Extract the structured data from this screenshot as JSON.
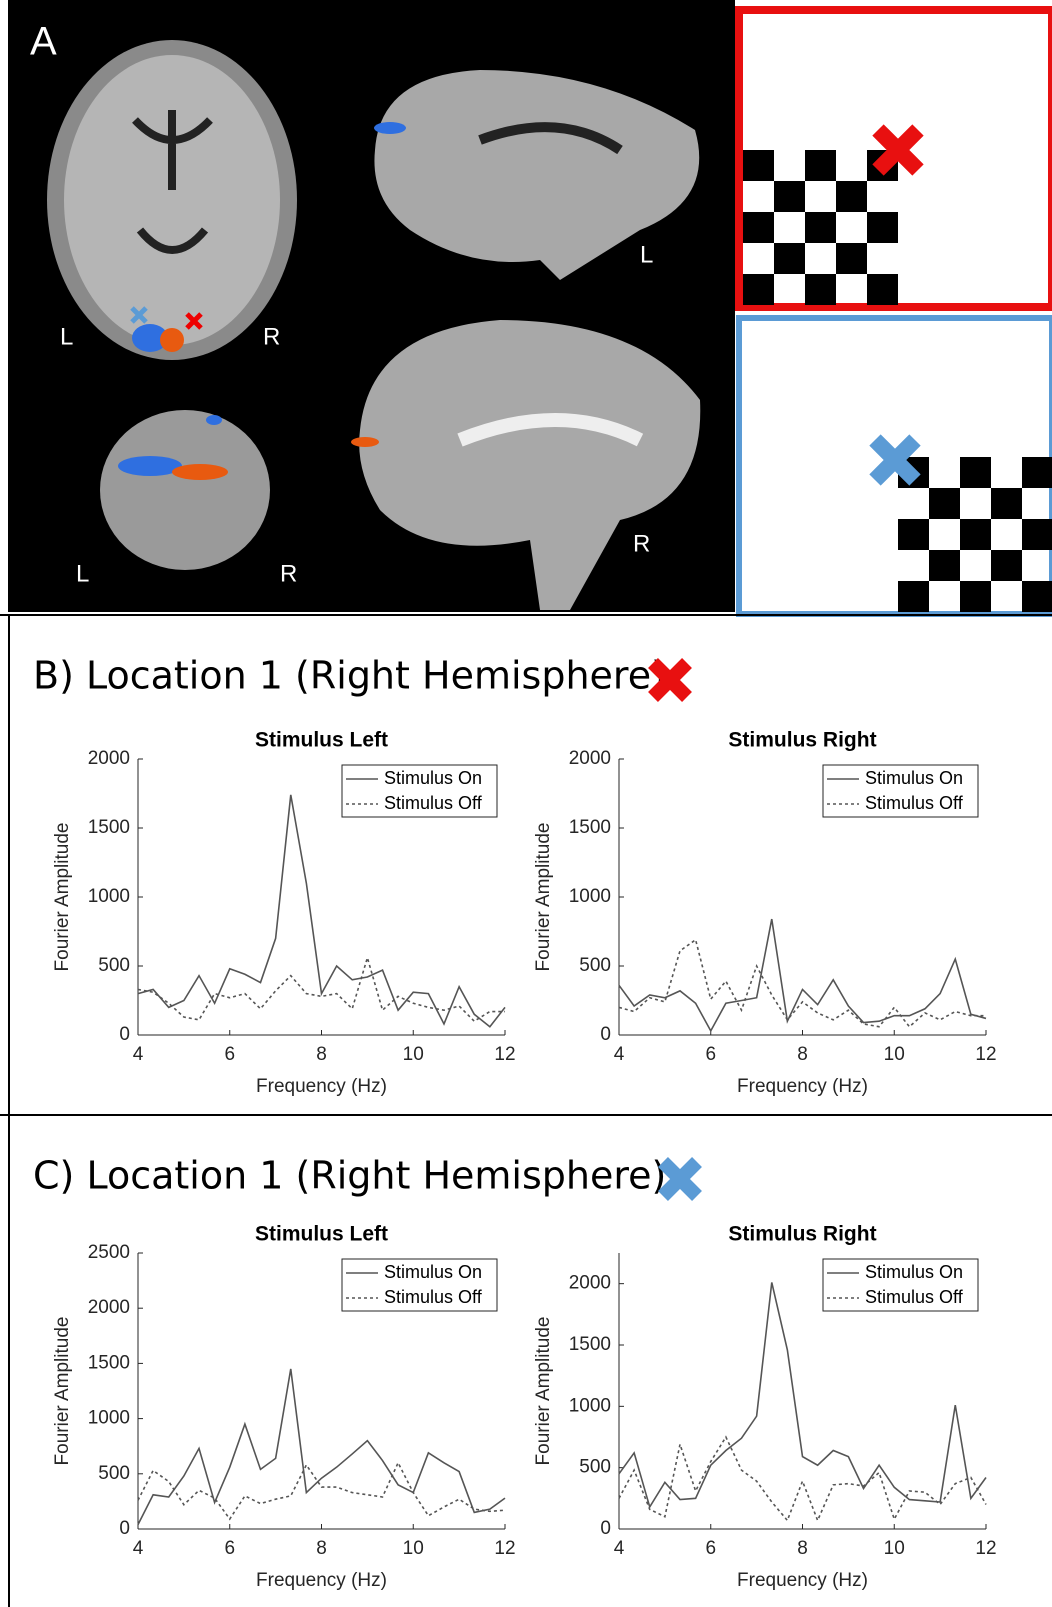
{
  "panel_a": {
    "label": "A",
    "axial": [
      "L",
      "R"
    ],
    "coronal": [
      "L",
      "R"
    ],
    "sagittal_top": "L",
    "sagittal_bottom": "R"
  },
  "sections": [
    "B) Location 1 (Right Hemisphere)",
    "C) Location 1 (Right Hemisphere)"
  ],
  "chart_data": [
    {
      "type": "line",
      "title": "Stimulus Left",
      "xlabel": "Frequency (Hz)",
      "ylabel": "Fourier Amplitude",
      "x": [
        4,
        4.33,
        4.67,
        5,
        5.33,
        5.67,
        6,
        6.33,
        6.67,
        7,
        7.33,
        7.67,
        8,
        8.33,
        8.67,
        9,
        9.33,
        9.67,
        10,
        10.33,
        10.67,
        11,
        11.33,
        11.67,
        12
      ],
      "xlim": [
        4,
        12
      ],
      "xticks": [
        4,
        6,
        8,
        10,
        12
      ],
      "ylim": [
        0,
        2000
      ],
      "yticks": [
        0,
        500,
        1000,
        1500,
        2000
      ],
      "legend": "upper right",
      "series": [
        {
          "name": "Stimulus On",
          "color": "#555555",
          "linestyle": "solid",
          "values": [
            300,
            330,
            200,
            250,
            430,
            230,
            480,
            440,
            380,
            700,
            1740,
            1100,
            300,
            500,
            400,
            420,
            470,
            180,
            310,
            300,
            80,
            350,
            150,
            60,
            200
          ]
        },
        {
          "name": "Stimulus Off",
          "color": "#555555",
          "linestyle": "dotted",
          "values": [
            330,
            310,
            230,
            130,
            110,
            300,
            270,
            300,
            190,
            320,
            430,
            300,
            280,
            300,
            190,
            560,
            180,
            280,
            230,
            200,
            180,
            210,
            100,
            170,
            170
          ]
        }
      ]
    },
    {
      "type": "line",
      "title": "Stimulus Right",
      "xlabel": "Frequency (Hz)",
      "ylabel": "Fourier Amplitude",
      "x": [
        4,
        4.33,
        4.67,
        5,
        5.33,
        5.67,
        6,
        6.33,
        6.67,
        7,
        7.33,
        7.67,
        8,
        8.33,
        8.67,
        9,
        9.33,
        9.67,
        10,
        10.33,
        10.67,
        11,
        11.33,
        11.67,
        12
      ],
      "xlim": [
        4,
        12
      ],
      "xticks": [
        4,
        6,
        8,
        10,
        12
      ],
      "ylim": [
        0,
        2000
      ],
      "yticks": [
        0,
        500,
        1000,
        1500,
        2000
      ],
      "legend": "upper right",
      "series": [
        {
          "name": "Stimulus On",
          "color": "#555555",
          "linestyle": "solid",
          "values": [
            360,
            210,
            290,
            270,
            320,
            230,
            30,
            230,
            250,
            270,
            840,
            100,
            330,
            220,
            400,
            210,
            90,
            100,
            140,
            140,
            190,
            300,
            550,
            150,
            120
          ]
        },
        {
          "name": "Stimulus Off",
          "color": "#555555",
          "linestyle": "dotted",
          "values": [
            200,
            170,
            270,
            240,
            610,
            690,
            260,
            390,
            180,
            500,
            290,
            110,
            240,
            160,
            110,
            180,
            80,
            60,
            200,
            60,
            160,
            110,
            170,
            140,
            140
          ]
        }
      ]
    },
    {
      "type": "line",
      "title": "Stimulus Left",
      "xlabel": "Frequency (Hz)",
      "ylabel": "Fourier Amplitude",
      "x": [
        4,
        4.33,
        4.67,
        5,
        5.33,
        5.67,
        6,
        6.33,
        6.67,
        7,
        7.33,
        7.67,
        8,
        8.33,
        8.67,
        9,
        9.33,
        9.67,
        10,
        10.33,
        10.67,
        11,
        11.33,
        11.67,
        12
      ],
      "xlim": [
        4,
        12
      ],
      "xticks": [
        4,
        6,
        8,
        10,
        12
      ],
      "ylim": [
        0,
        2500
      ],
      "yticks": [
        0,
        500,
        1000,
        1500,
        2000,
        2500
      ],
      "legend": "upper right",
      "series": [
        {
          "name": "Stimulus On",
          "color": "#555555",
          "linestyle": "solid",
          "values": [
            40,
            310,
            290,
            480,
            730,
            240,
            560,
            950,
            540,
            640,
            1450,
            330,
            460,
            560,
            680,
            800,
            620,
            400,
            330,
            690,
            600,
            520,
            150,
            180,
            280
          ]
        },
        {
          "name": "Stimulus Off",
          "color": "#555555",
          "linestyle": "dotted",
          "values": [
            260,
            530,
            430,
            220,
            350,
            280,
            90,
            300,
            230,
            270,
            300,
            580,
            380,
            380,
            330,
            310,
            290,
            600,
            330,
            120,
            200,
            270,
            180,
            160,
            170
          ]
        }
      ]
    },
    {
      "type": "line",
      "title": "Stimulus Right",
      "xlabel": "Frequency (Hz)",
      "ylabel": "Fourier Amplitude",
      "x": [
        4,
        4.33,
        4.67,
        5,
        5.33,
        5.67,
        6,
        6.33,
        6.67,
        7,
        7.33,
        7.67,
        8,
        8.33,
        8.67,
        9,
        9.33,
        9.67,
        10,
        10.33,
        10.67,
        11,
        11.33,
        11.67,
        12
      ],
      "xlim": [
        4,
        12
      ],
      "xticks": [
        4,
        6,
        8,
        10,
        12
      ],
      "ylim": [
        0,
        2250
      ],
      "yticks": [
        0,
        500,
        1000,
        1500,
        2000
      ],
      "legend": "upper right",
      "series": [
        {
          "name": "Stimulus On",
          "color": "#555555",
          "linestyle": "solid",
          "values": [
            450,
            620,
            180,
            380,
            240,
            250,
            520,
            640,
            740,
            920,
            2010,
            1460,
            590,
            520,
            640,
            590,
            330,
            520,
            340,
            240,
            230,
            220,
            1010,
            250,
            420
          ]
        },
        {
          "name": "Stimulus Off",
          "color": "#555555",
          "linestyle": "dotted",
          "values": [
            250,
            480,
            160,
            100,
            690,
            310,
            550,
            750,
            480,
            390,
            220,
            70,
            390,
            70,
            360,
            370,
            350,
            460,
            80,
            310,
            300,
            200,
            370,
            420,
            200
          ]
        }
      ]
    }
  ]
}
